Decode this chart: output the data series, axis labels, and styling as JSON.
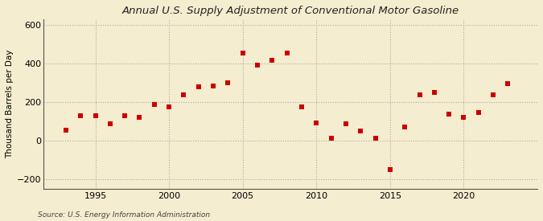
{
  "title": "Annual U.S. Supply Adjustment of Conventional Motor Gasoline",
  "ylabel": "Thousand Barrels per Day",
  "source": "Source: U.S. Energy Information Administration",
  "background_color": "#f5edcf",
  "marker_color": "#cc0000",
  "ylim": [
    -250,
    630
  ],
  "yticks": [
    -200,
    0,
    200,
    400,
    600
  ],
  "xticks": [
    1995,
    2000,
    2005,
    2010,
    2015,
    2020
  ],
  "xlim": [
    1991.5,
    2025
  ],
  "years": [
    1993,
    1994,
    1995,
    1996,
    1997,
    1998,
    1999,
    2000,
    2001,
    2002,
    2003,
    2004,
    2005,
    2006,
    2007,
    2008,
    2009,
    2010,
    2011,
    2012,
    2013,
    2014,
    2015,
    2016,
    2017,
    2018,
    2019,
    2020,
    2021,
    2022,
    2023
  ],
  "values": [
    55,
    130,
    130,
    85,
    130,
    120,
    185,
    175,
    235,
    280,
    285,
    300,
    455,
    390,
    415,
    455,
    175,
    90,
    10,
    85,
    50,
    10,
    -150,
    70,
    235,
    250,
    135,
    120,
    145,
    235,
    295
  ],
  "title_fontsize": 9.5,
  "tick_fontsize": 8,
  "ylabel_fontsize": 7.5,
  "source_fontsize": 6.5,
  "marker_size": 14
}
